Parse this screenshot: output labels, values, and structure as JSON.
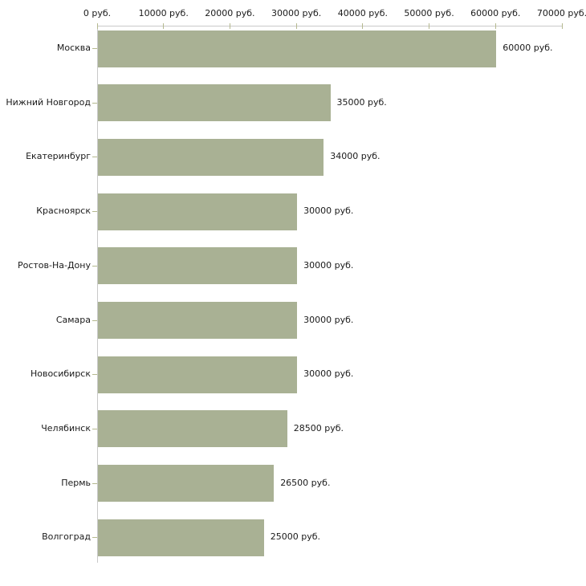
{
  "chart_data": {
    "type": "bar",
    "orientation": "horizontal",
    "title": "",
    "xlabel": "",
    "ylabel": "",
    "unit": "руб.",
    "xlim": [
      0,
      70000
    ],
    "grid": false,
    "legend": false,
    "categories": [
      "Москва",
      "Нижний Новгород",
      "Екатеринбург",
      "Красноярск",
      "Ростов-На-Дону",
      "Самара",
      "Новосибирск",
      "Челябинск",
      "Пермь",
      "Волгоград"
    ],
    "values": [
      60000,
      35000,
      34000,
      30000,
      30000,
      30000,
      30000,
      28500,
      26500,
      25000
    ],
    "value_labels": [
      "60000 руб.",
      "35000 руб.",
      "34000 руб.",
      "30000 руб.",
      "30000 руб.",
      "30000 руб.",
      "30000 руб.",
      "28500 руб.",
      "26500 руб.",
      "25000 руб."
    ],
    "x_ticks": [
      0,
      10000,
      20000,
      30000,
      40000,
      50000,
      60000,
      70000
    ],
    "x_tick_labels": [
      "0 руб.",
      "10000 руб.",
      "20000 руб.",
      "30000 руб.",
      "40000 руб.",
      "50000 руб.",
      "60000 руб.",
      "70000 руб."
    ],
    "bar_color": "#a9b194",
    "axis_color": "#c9c9c9",
    "tick_color": "#b5b98f",
    "text_color": "#1a1a1a",
    "background_color": "#ffffff"
  }
}
